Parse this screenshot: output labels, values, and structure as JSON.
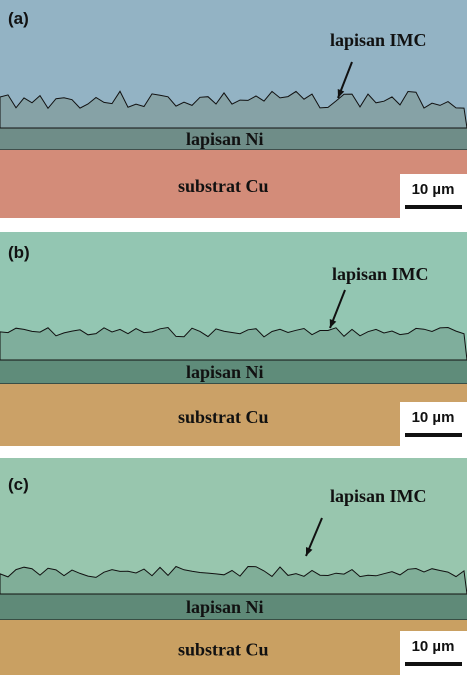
{
  "panels": [
    {
      "label": "(a)",
      "imc_label": "lapisan IMC",
      "ni_label": "lapisan Ni",
      "cu_label": "substrat Cu",
      "scale_bar": "10 µm"
    },
    {
      "label": "(b)",
      "imc_label": "lapisan IMC",
      "ni_label": "lapisan Ni",
      "cu_label": "substrat Cu",
      "scale_bar": "10 µm"
    },
    {
      "label": "(c)",
      "imc_label": "lapisan IMC",
      "ni_label": "lapisan Ni",
      "cu_label": "substrat Cu",
      "scale_bar": "10 µm"
    }
  ]
}
